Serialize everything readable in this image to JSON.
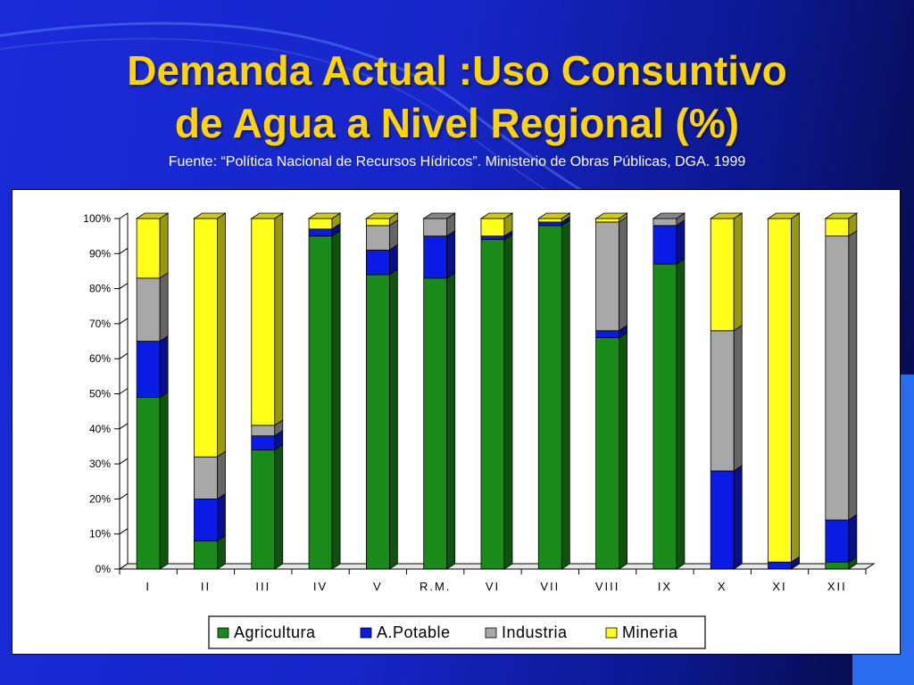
{
  "slide": {
    "title_line1": "Demanda Actual :Uso Consuntivo",
    "title_line2": "de Agua a Nivel Regional (%)",
    "source": "Fuente: “Política Nacional de Recursos Hídricos”. Ministerio de Obras Públicas, DGA. 1999"
  },
  "colors": {
    "Agricultura": "#1a8a1a",
    "A.Potable": "#0b1be6",
    "Industria": "#a8a8a8",
    "Mineria": "#ffff1a",
    "title": "#ffd400"
  },
  "chart_data": {
    "type": "bar",
    "stacked": true,
    "percent": true,
    "three_d": true,
    "categories": [
      "I",
      "II",
      "III",
      "IV",
      "V",
      "R.M.",
      "VI",
      "VII",
      "VIII",
      "IX",
      "X",
      "XI",
      "XII"
    ],
    "series": [
      {
        "name": "Agricultura",
        "values": [
          49,
          8,
          34,
          95,
          84,
          83,
          94,
          98,
          66,
          87,
          0,
          0,
          2
        ]
      },
      {
        "name": "A.Potable",
        "values": [
          16,
          12,
          4,
          2,
          7,
          12,
          1,
          1,
          2,
          11,
          28,
          2,
          12
        ]
      },
      {
        "name": "Industria",
        "values": [
          18,
          12,
          3,
          0,
          7,
          5,
          0,
          0,
          31,
          2,
          40,
          0,
          81
        ]
      },
      {
        "name": "Mineria",
        "values": [
          17,
          68,
          59,
          3,
          2,
          0,
          5,
          1,
          1,
          0,
          32,
          98,
          5
        ]
      }
    ],
    "ylim": [
      0,
      100
    ],
    "yticks": [
      "0%",
      "10%",
      "20%",
      "30%",
      "40%",
      "50%",
      "60%",
      "70%",
      "80%",
      "90%",
      "100%"
    ],
    "legend_position": "bottom",
    "grid": false
  }
}
